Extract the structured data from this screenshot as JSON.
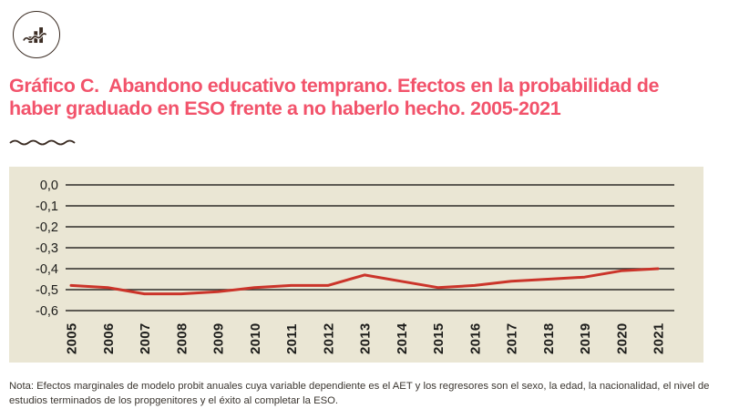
{
  "header": {
    "title_lines": [
      "Gráfico C.  Abandono educativo temprano. Efectos en la probabilidad de",
      "haber graduado en ESO frente a no haberlo hecho. 2005-2021"
    ]
  },
  "colors": {
    "title_accent": "#F2536B",
    "ink": "#3B2C23"
  },
  "chart_data": {
    "type": "line",
    "categories": [
      "2005",
      "2006",
      "2007",
      "2008",
      "2009",
      "2010",
      "2011",
      "2012",
      "2013",
      "2014",
      "2015",
      "2016",
      "2017",
      "2018",
      "2019",
      "2020",
      "2021"
    ],
    "values": [
      -0.48,
      -0.49,
      -0.52,
      -0.52,
      -0.51,
      -0.49,
      -0.48,
      -0.48,
      -0.43,
      -0.46,
      -0.49,
      -0.48,
      -0.46,
      -0.45,
      -0.44,
      -0.41,
      -0.4
    ],
    "title": "",
    "xlabel": "",
    "ylabel": "",
    "ylim": [
      -0.6,
      0.0
    ],
    "y_ticks": [
      {
        "value": 0.0,
        "label": "0,0"
      },
      {
        "value": -0.1,
        "label": "-0,1"
      },
      {
        "value": -0.2,
        "label": "-0,2"
      },
      {
        "value": -0.3,
        "label": "-0,3"
      },
      {
        "value": -0.4,
        "label": "-0,4"
      },
      {
        "value": -0.5,
        "label": "-0,5"
      },
      {
        "value": -0.6,
        "label": "-0,6"
      }
    ],
    "grid": "horizontal",
    "legend": "none",
    "background": "#EAE6D4",
    "grid_color": "#2E2C28",
    "tick_color": "#1C1C1A",
    "line_color": "#CB342A"
  },
  "footnote": {
    "text": "Nota: Efectos marginales de modelo probit anuales cuya variable dependiente es el AET y los regresores son el sexo, la edad, la nacionalidad, el nivel de estudios terminados de los propgenitores y el éxito al completar la ESO."
  }
}
